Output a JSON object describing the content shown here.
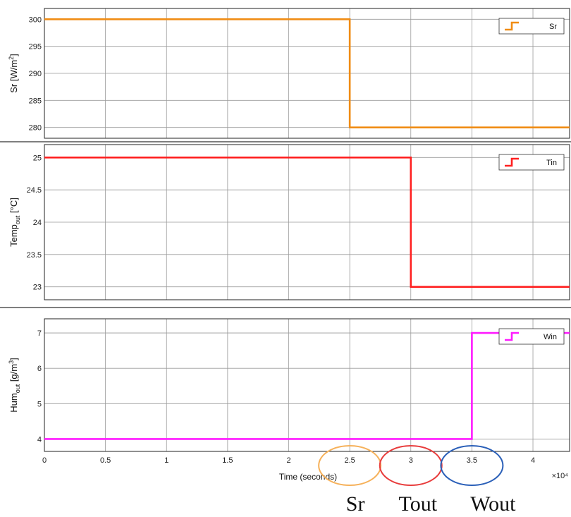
{
  "chart_data": [
    {
      "type": "line",
      "step": true,
      "ylabel": "Sr [W/m²]",
      "ylim": [
        278,
        302
      ],
      "yticks": [
        280,
        285,
        290,
        295,
        300
      ],
      "ytick_labels": [
        "280",
        "285",
        "290",
        "295",
        "300"
      ],
      "grid": true,
      "legend_position": "top-right",
      "series": [
        {
          "name": "Sr",
          "color": "#f08c14",
          "x": [
            0,
            2.5,
            2.5,
            4.3
          ],
          "y": [
            300,
            300,
            280,
            280
          ]
        }
      ]
    },
    {
      "type": "line",
      "step": true,
      "ylabel": "Temp_out [°C]",
      "ylim": [
        22.8,
        25.2
      ],
      "yticks": [
        23,
        23.5,
        24,
        24.5,
        25
      ],
      "ytick_labels": [
        "23",
        "23.5",
        "24",
        "24.5",
        "25"
      ],
      "grid": true,
      "legend_position": "top-right",
      "series": [
        {
          "name": "Tin",
          "color": "#ff2020",
          "x": [
            0,
            3.0,
            3.0,
            4.3
          ],
          "y": [
            25,
            25,
            23,
            23
          ]
        }
      ]
    },
    {
      "type": "line",
      "step": true,
      "ylabel": "Hum_out [g/m³]",
      "xlabel": "Time (seconds)",
      "ylim": [
        3.65,
        7.4
      ],
      "yticks": [
        4,
        5,
        6,
        7
      ],
      "ytick_labels": [
        "4",
        "5",
        "6",
        "7"
      ],
      "xlim": [
        0,
        4.3
      ],
      "xticks": [
        0,
        0.5,
        1,
        1.5,
        2,
        2.5,
        3,
        3.5,
        4
      ],
      "xtick_labels": [
        "0",
        "0.5",
        "1",
        "1.5",
        "2",
        "2.5",
        "3",
        "3.5",
        "4"
      ],
      "x_multiplier": "×10⁴",
      "grid": true,
      "legend_position": "top-right",
      "series": [
        {
          "name": "Win",
          "color": "#ff1aff",
          "x": [
            0,
            3.5,
            3.5,
            4.3
          ],
          "y": [
            4,
            4,
            7,
            7
          ]
        }
      ]
    }
  ],
  "annotations": {
    "circles": [
      {
        "at_x": 2.5,
        "color": "#f6b15a",
        "label": "Sr"
      },
      {
        "at_x": 3.0,
        "color": "#e83c3c",
        "label": "Tout"
      },
      {
        "at_x": 3.5,
        "color": "#2a5fb8",
        "label": "Wout"
      }
    ]
  }
}
